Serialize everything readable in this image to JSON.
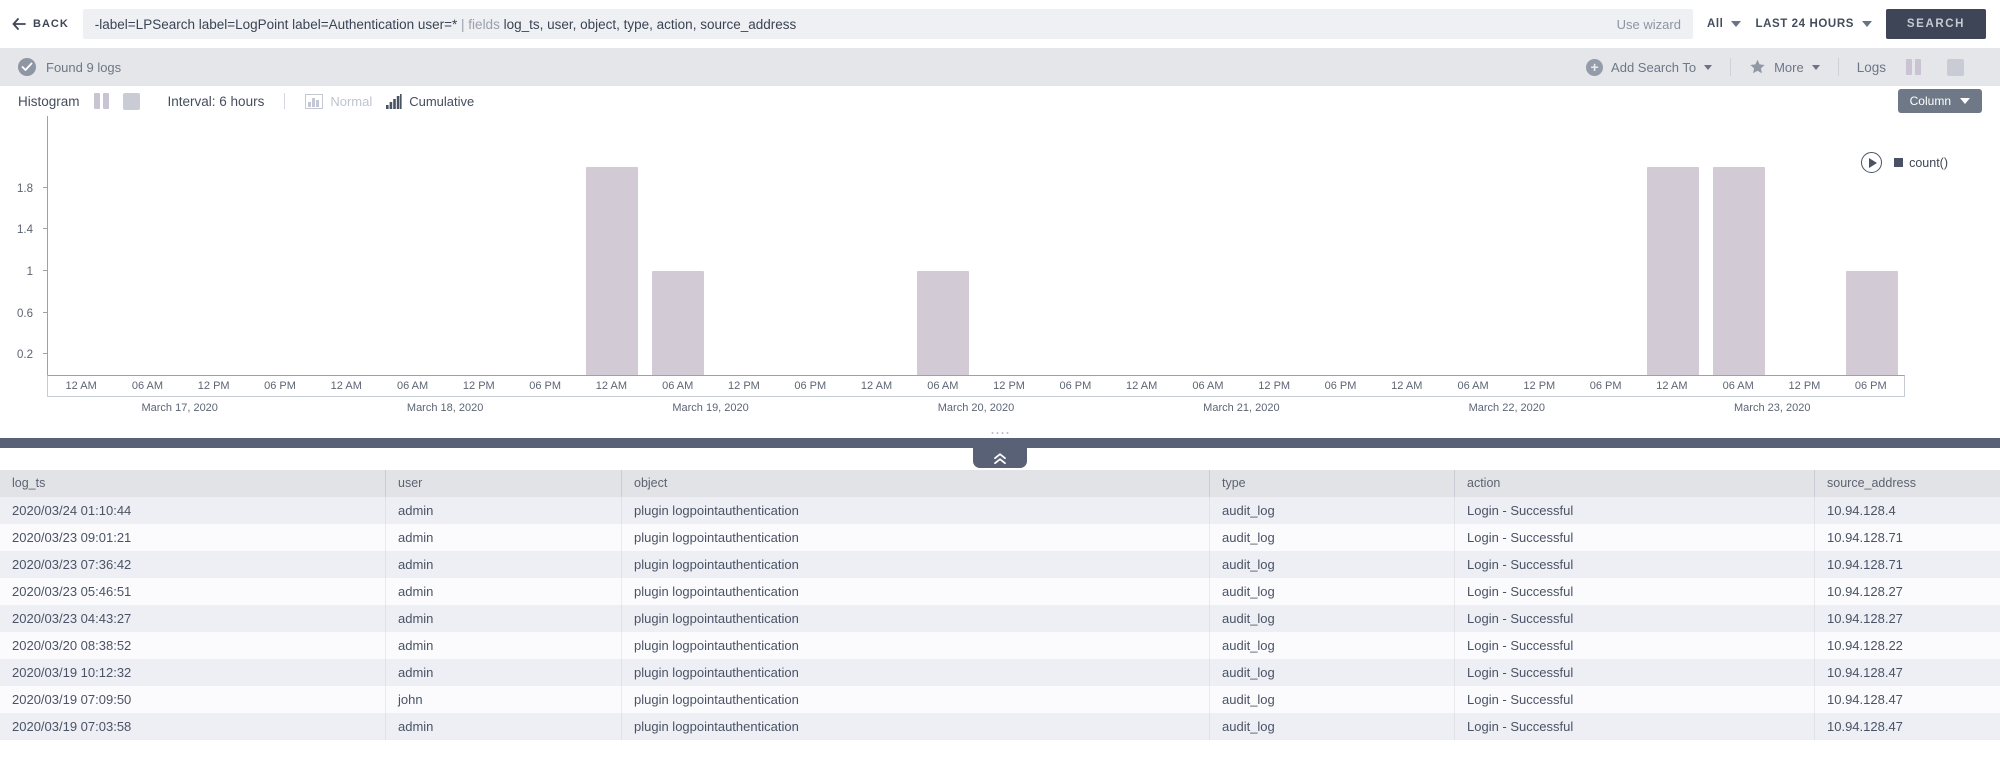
{
  "header": {
    "back": "BACK",
    "query": {
      "part1": "-label=LPSearch label=LogPoint label=Authentication user=* ",
      "keyword": "| fields ",
      "part2": "log_ts, user, object, type, action, source_address"
    },
    "use_wizard": "Use wizard",
    "scope": "All",
    "time_range": "LAST 24 HOURS",
    "search_button": "SEARCH"
  },
  "status_bar": {
    "found": "Found 9 logs",
    "add_search_to": "Add Search To",
    "more": "More",
    "logs": "Logs"
  },
  "chart_toolbar": {
    "histogram": "Histogram",
    "interval": "Interval: 6 hours",
    "normal": "Normal",
    "cumulative": "Cumulative",
    "column_button": "Column"
  },
  "chart_data": {
    "type": "bar",
    "series_name": "count()",
    "ylim": [
      0,
      2.49
    ],
    "y_ticks": [
      0.2,
      0.6,
      1,
      1.4,
      1.8
    ],
    "x_tick_labels": [
      "12 AM",
      "06 AM",
      "12 PM",
      "06 PM",
      "12 AM",
      "06 AM",
      "12 PM",
      "06 PM",
      "12 AM",
      "06 AM",
      "12 PM",
      "06 PM",
      "12 AM",
      "06 AM",
      "12 PM",
      "06 PM",
      "12 AM",
      "06 AM",
      "12 PM",
      "06 PM",
      "12 AM",
      "06 AM",
      "12 PM",
      "06 PM",
      "12 AM",
      "06 AM",
      "12 PM",
      "06 PM"
    ],
    "date_labels": [
      "March 17, 2020",
      "March 18, 2020",
      "March 19, 2020",
      "March 20, 2020",
      "March 21, 2020",
      "March 22, 2020",
      "March 23, 2020"
    ],
    "bars": [
      {
        "tick_index": 8,
        "date": "March 19, 2020",
        "time": "12 AM",
        "value": 2
      },
      {
        "tick_index": 9,
        "date": "March 19, 2020",
        "time": "06 AM",
        "value": 1
      },
      {
        "tick_index": 13,
        "date": "March 20, 2020",
        "time": "06 AM",
        "value": 1
      },
      {
        "tick_index": 24,
        "date": "March 23, 2020",
        "time": "12 AM",
        "value": 2
      },
      {
        "tick_index": 25,
        "date": "March 23, 2020",
        "time": "06 AM",
        "value": 2
      },
      {
        "tick_index": 27,
        "date": "March 23, 2020",
        "time": "06 PM",
        "value": 1
      }
    ],
    "bar_color": "#d2cbd6",
    "legend": {
      "label": "count()",
      "swatch_color": "#4a5164",
      "position": "top-right"
    },
    "grid": false
  },
  "table": {
    "columns": [
      "log_ts",
      "user",
      "object",
      "type",
      "action",
      "source_address"
    ],
    "rows": [
      [
        "2020/03/24 01:10:44",
        "admin",
        "plugin logpointauthentication",
        "audit_log",
        "Login - Successful",
        "10.94.128.4"
      ],
      [
        "2020/03/23 09:01:21",
        "admin",
        "plugin logpointauthentication",
        "audit_log",
        "Login - Successful",
        "10.94.128.71"
      ],
      [
        "2020/03/23 07:36:42",
        "admin",
        "plugin logpointauthentication",
        "audit_log",
        "Login - Successful",
        "10.94.128.71"
      ],
      [
        "2020/03/23 05:46:51",
        "admin",
        "plugin logpointauthentication",
        "audit_log",
        "Login - Successful",
        "10.94.128.27"
      ],
      [
        "2020/03/23 04:43:27",
        "admin",
        "plugin logpointauthentication",
        "audit_log",
        "Login - Successful",
        "10.94.128.27"
      ],
      [
        "2020/03/20 08:38:52",
        "admin",
        "plugin logpointauthentication",
        "audit_log",
        "Login - Successful",
        "10.94.128.22"
      ],
      [
        "2020/03/19 10:12:32",
        "admin",
        "plugin logpointauthentication",
        "audit_log",
        "Login - Successful",
        "10.94.128.47"
      ],
      [
        "2020/03/19 07:09:50",
        "john",
        "plugin logpointauthentication",
        "audit_log",
        "Login - Successful",
        "10.94.128.47"
      ],
      [
        "2020/03/19 07:03:58",
        "admin",
        "plugin logpointauthentication",
        "audit_log",
        "Login - Successful",
        "10.94.128.47"
      ]
    ]
  }
}
